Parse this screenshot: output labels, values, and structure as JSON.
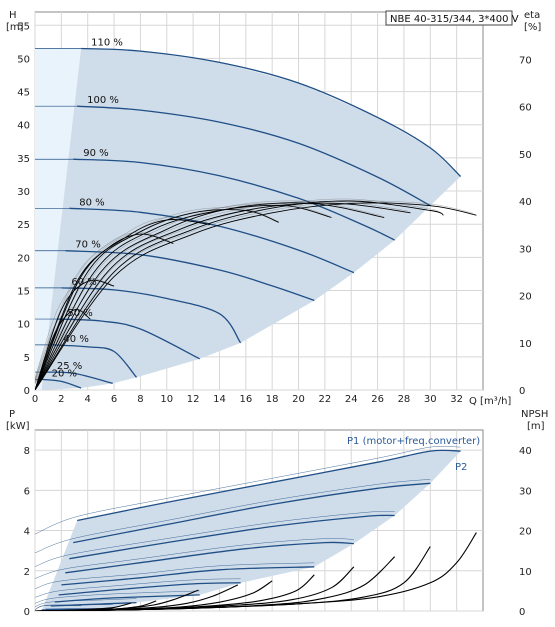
{
  "title": "NBE 40-315/344, 3*400 V",
  "colors": {
    "band": "#cfdce9",
    "light_band": "#e9f3fb",
    "curve": "#1f4f86",
    "eta_curve": "#000000",
    "thin_curve": "#555555",
    "grid": "#d7d7d7"
  },
  "chart_data": [
    {
      "type": "line",
      "title": "",
      "ylabel_line1": "H",
      "ylabel_line2": "[m]",
      "y2label_line1": "eta",
      "y2label_line2": "[%]",
      "xlabel": "Q [m³/h]",
      "xlim": [
        0,
        34
      ],
      "ylim": [
        0,
        57
      ],
      "y2lim": [
        0,
        80
      ],
      "xticks": [
        0,
        2,
        4,
        6,
        8,
        10,
        12,
        14,
        16,
        18,
        20,
        22,
        24,
        26,
        28,
        30,
        32
      ],
      "yticks": [
        0,
        5,
        10,
        15,
        20,
        25,
        30,
        35,
        40,
        45,
        50,
        55
      ],
      "y2ticks": [
        0,
        10,
        20,
        30,
        40,
        50,
        60,
        70
      ],
      "grid": true,
      "speed_labels": [
        "110 %",
        "100 %",
        "90 %",
        "80 %",
        "70 %",
        "60 %",
        "50 %",
        "40 %",
        "25 %",
        "20 %"
      ],
      "head_curves": [
        {
          "name": "110 %",
          "x": [
            3.5,
            8,
            14,
            20,
            26,
            30,
            32.3
          ],
          "y": [
            51.5,
            51.1,
            49.4,
            46.3,
            41.1,
            36.5,
            32.2
          ]
        },
        {
          "name": "100 %",
          "x": [
            3.2,
            8,
            14,
            20,
            26,
            30
          ],
          "y": [
            42.8,
            42.2,
            40.4,
            37.2,
            32.1,
            27.8
          ]
        },
        {
          "name": "90 %",
          "x": [
            2.9,
            8,
            14,
            20,
            25,
            27.3
          ],
          "y": [
            34.8,
            34.3,
            32.3,
            28.9,
            24.8,
            22.6
          ]
        },
        {
          "name": "80 %",
          "x": [
            2.6,
            8,
            14,
            20,
            24.2
          ],
          "y": [
            27.4,
            26.8,
            24.7,
            21.1,
            17.7
          ]
        },
        {
          "name": "70 %",
          "x": [
            2.3,
            8,
            14,
            18,
            21.2
          ],
          "y": [
            21.0,
            20.4,
            18.1,
            15.7,
            13.5
          ]
        },
        {
          "name": "60 %",
          "x": [
            2.0,
            6,
            10,
            14,
            15.6
          ],
          "y": [
            15.4,
            15.1,
            13.8,
            11.5,
            7.1
          ]
        },
        {
          "name": "50 %",
          "x": [
            1.7,
            5,
            8,
            12.5
          ],
          "y": [
            10.7,
            10.4,
            9.2,
            4.7
          ]
        },
        {
          "name": "40 %",
          "x": [
            1.4,
            4,
            6,
            7.7
          ],
          "y": [
            6.8,
            6.5,
            5.8,
            1.9
          ]
        },
        {
          "name": "25 %",
          "x": [
            0.9,
            3,
            5.9
          ],
          "y": [
            2.7,
            2.5,
            1.0
          ]
        },
        {
          "name": "20 %",
          "x": [
            0.5,
            2,
            3.5
          ],
          "y": [
            1.6,
            1.3,
            0.3
          ]
        }
      ],
      "eta_curves": [
        {
          "name": "110 %",
          "x": [
            0,
            6,
            12,
            18,
            24,
            30,
            33.5
          ],
          "y": [
            0,
            24,
            33,
            37.5,
            39.5,
            39,
            37
          ]
        },
        {
          "name": "100 %",
          "x": [
            0,
            6,
            12,
            18,
            24,
            30,
            31
          ],
          "y": [
            0,
            25,
            34,
            38.5,
            40,
            38,
            37
          ]
        },
        {
          "name": "90 %",
          "x": [
            0,
            5.5,
            11,
            17,
            23,
            28.5
          ],
          "y": [
            0,
            25,
            34,
            38.5,
            39.5,
            37.5
          ]
        },
        {
          "name": "80 %",
          "x": [
            0,
            5,
            10,
            15,
            21,
            26.5
          ],
          "y": [
            0,
            25,
            34,
            38.5,
            39.5,
            36.5
          ]
        },
        {
          "name": "70 %",
          "x": [
            0,
            4.5,
            9,
            14,
            19,
            22.5
          ],
          "y": [
            0,
            25,
            34,
            38,
            39,
            36.5
          ]
        },
        {
          "name": "60 %",
          "x": [
            0,
            4,
            8,
            12,
            16,
            18.5
          ],
          "y": [
            0,
            25,
            33.5,
            37.5,
            38,
            35.5
          ]
        },
        {
          "name": "50 %",
          "x": [
            0,
            3.5,
            7,
            10,
            13.3
          ],
          "y": [
            0,
            24,
            32.5,
            36,
            35
          ]
        },
        {
          "name": "40 %",
          "x": [
            0,
            3,
            5.5,
            8,
            10.5
          ],
          "y": [
            0,
            22,
            30,
            33,
            31
          ]
        },
        {
          "name": "25 %",
          "x": [
            0,
            2,
            4,
            6
          ],
          "y": [
            0,
            17,
            23,
            22
          ]
        },
        {
          "name": "20 %",
          "x": [
            0,
            1.5,
            3,
            4.2
          ],
          "y": [
            0,
            12,
            17,
            15
          ]
        }
      ]
    },
    {
      "type": "line",
      "title": "",
      "ylabel_line1": "P",
      "ylabel_line2": "[kW]",
      "y2label_line1": "NPSH",
      "y2label_line2": "[m]",
      "xlim": [
        0,
        34
      ],
      "ylim": [
        0,
        9
      ],
      "y2lim": [
        0,
        45
      ],
      "yticks": [
        0,
        2,
        4,
        6,
        8
      ],
      "y2ticks": [
        0,
        10,
        20,
        30,
        40
      ],
      "grid": true,
      "annotations": [
        "P1 (motor+freq.converter)",
        "P2"
      ],
      "power_curves": [
        {
          "name": "110 %",
          "x": [
            3.2,
            10,
            18,
            26,
            30,
            32.3
          ],
          "y": [
            4.5,
            5.4,
            6.4,
            7.4,
            7.95,
            7.95
          ]
        },
        {
          "name": "100 %",
          "x": [
            2.9,
            10,
            18,
            26,
            30
          ],
          "y": [
            3.4,
            4.3,
            5.3,
            6.1,
            6.35
          ]
        },
        {
          "name": "90 %",
          "x": [
            2.6,
            10,
            18,
            25,
            27.3
          ],
          "y": [
            2.6,
            3.4,
            4.2,
            4.7,
            4.75
          ]
        },
        {
          "name": "80 %",
          "x": [
            2.3,
            8,
            16,
            22,
            24.2
          ],
          "y": [
            1.9,
            2.4,
            3.1,
            3.4,
            3.35
          ]
        },
        {
          "name": "70 %",
          "x": [
            2.0,
            8,
            14,
            21.2
          ],
          "y": [
            1.3,
            1.65,
            2.05,
            2.2
          ]
        },
        {
          "name": "60 %",
          "x": [
            1.8,
            6,
            12,
            15.6
          ],
          "y": [
            0.8,
            1.05,
            1.35,
            1.4
          ]
        },
        {
          "name": "50 %",
          "x": [
            1.5,
            6,
            12.5
          ],
          "y": [
            0.45,
            0.65,
            0.8
          ]
        },
        {
          "name": "40 %",
          "x": [
            1.2,
            5,
            7.7
          ],
          "y": [
            0.25,
            0.35,
            0.42
          ]
        },
        {
          "name": "25 %",
          "x": [
            0.8,
            3,
            5.9
          ],
          "y": [
            0.08,
            0.1,
            0.12
          ]
        },
        {
          "name": "20 %",
          "x": [
            0.5,
            2,
            3.5
          ],
          "y": [
            0.05,
            0.06,
            0.06
          ]
        }
      ],
      "npsh_curves": [
        {
          "name": "110 %",
          "x": [
            0,
            10,
            20,
            26,
            30,
            32,
            33.5
          ],
          "y": [
            0,
            0.5,
            1.8,
            3.5,
            7,
            12,
            19.5
          ]
        },
        {
          "name": "100 %",
          "x": [
            0,
            10,
            20,
            25,
            28,
            30
          ],
          "y": [
            0,
            0.5,
            1.8,
            3.5,
            7,
            16
          ]
        },
        {
          "name": "90 %",
          "x": [
            0,
            10,
            18,
            22,
            25,
            27.3
          ],
          "y": [
            0,
            0.5,
            1.6,
            3.2,
            6.5,
            13.5
          ]
        },
        {
          "name": "80 %",
          "x": [
            0,
            8,
            15,
            19.5,
            22.5,
            24.2
          ],
          "y": [
            0,
            0.4,
            1.4,
            2.8,
            5.8,
            11
          ]
        },
        {
          "name": "70 %",
          "x": [
            0,
            8,
            13,
            17,
            19.8,
            21.2
          ],
          "y": [
            0,
            0.4,
            1.2,
            2.5,
            5,
            9
          ]
        },
        {
          "name": "60 %",
          "x": [
            0,
            6,
            11,
            14,
            16.5,
            18
          ],
          "y": [
            0,
            0.3,
            1,
            2.2,
            4.4,
            7.5
          ]
        },
        {
          "name": "50 %",
          "x": [
            0,
            5,
            9,
            11.5,
            13.5,
            15.4
          ],
          "y": [
            0,
            0.3,
            0.9,
            1.9,
            3.7,
            6.5
          ]
        },
        {
          "name": "40 %",
          "x": [
            0,
            4,
            7,
            9,
            10.5,
            12.4
          ],
          "y": [
            0,
            0.2,
            0.7,
            1.5,
            2.8,
            5.2
          ]
        },
        {
          "name": "25 %",
          "x": [
            0,
            3,
            6,
            8,
            9.2
          ],
          "y": [
            0,
            0.2,
            0.5,
            1.2,
            2.5
          ]
        },
        {
          "name": "20 %",
          "x": [
            0,
            2,
            4,
            6,
            7.3
          ],
          "y": [
            0,
            0.1,
            0.4,
            0.9,
            2
          ]
        }
      ]
    }
  ]
}
